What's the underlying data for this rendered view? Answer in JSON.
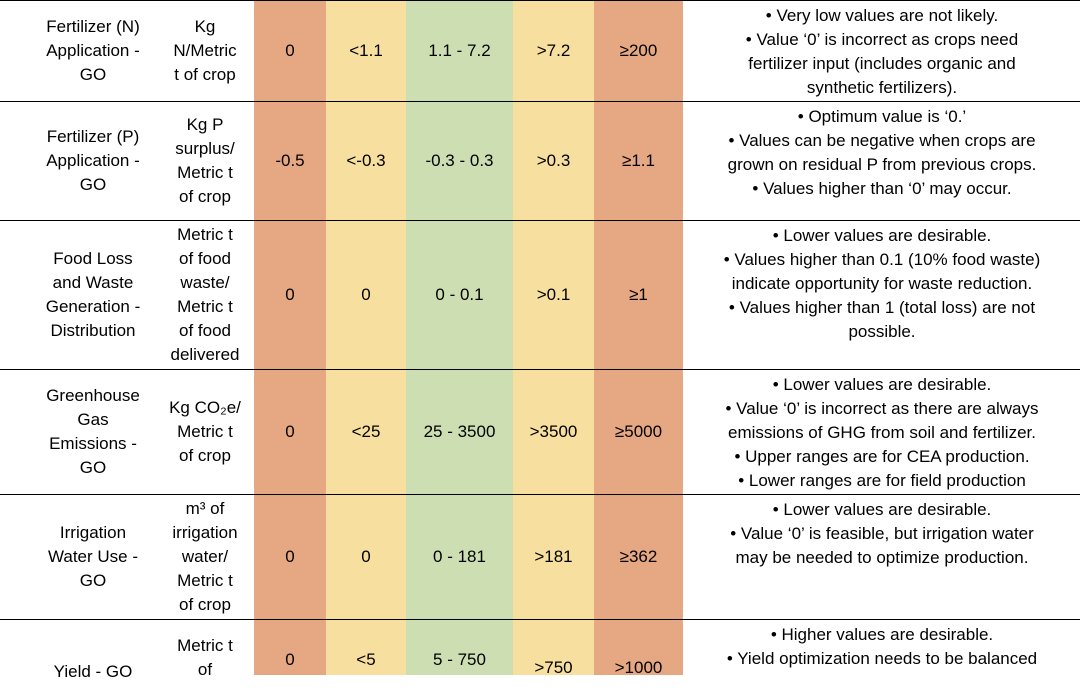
{
  "colors": {
    "red_band": "#E6A883",
    "yellow_band": "#F7E09F",
    "green_band": "#CDDEB2"
  },
  "rows": [
    {
      "metric": "Fertilizer (N)\nApplication -\nGO",
      "unit": "Kg\nN/Metric\nt of crop",
      "v1": "0",
      "v2": "<1.1",
      "v3": "1.1 - 7.2",
      "v4": ">7.2",
      "v5": "≥200",
      "notes": [
        "• Very low values are not likely.",
        "• Value ‘0’ is incorrect as crops need\nfertilizer input (includes organic and\nsynthetic fertilizers)."
      ]
    },
    {
      "metric": "Fertilizer (P)\nApplication -\nGO",
      "unit": "Kg P\nsurplus/\nMetric t\nof crop",
      "v1": "-0.5",
      "v2": "<-0.3",
      "v3": "-0.3 - 0.3",
      "v4": ">0.3",
      "v5": "≥1.1",
      "notes": [
        "• Optimum value is ‘0.’",
        "• Values can be negative when crops are\ngrown on residual P from previous crops.",
        "• Values higher than ‘0’ may occur."
      ]
    },
    {
      "metric": "Food Loss\nand Waste\nGeneration -\nDistribution",
      "unit": "Metric t\nof food\nwaste/\nMetric t\nof food\ndelivered",
      "v1": "0",
      "v2": "0",
      "v3": "0 - 0.1",
      "v4": ">0.1",
      "v5": "≥1",
      "notes": [
        "• Lower values are desirable.",
        "• Values higher than 0.1 (10% food waste)\nindicate opportunity for waste reduction.",
        "• Values higher than 1 (total loss) are not\npossible."
      ]
    },
    {
      "metric": "Greenhouse\nGas\nEmissions -\nGO",
      "unit": "Kg CO₂e/\nMetric t\nof crop",
      "v1": "0",
      "v2": "<25",
      "v3": "25 - 3500",
      "v4": ">3500",
      "v5": "≥5000",
      "notes": [
        "• Lower values are desirable.",
        "• Value ‘0’ is incorrect as there are always\nemissions of GHG from soil and fertilizer.",
        "• Upper ranges are for CEA production.",
        "• Lower ranges are for field production"
      ]
    },
    {
      "metric": "Irrigation\nWater Use -\nGO",
      "unit": "m³ of\nirrigation\nwater/\nMetric t\nof crop",
      "v1": "0",
      "v2": "0",
      "v3": "0 - 181",
      "v4": ">181",
      "v5": "≥362",
      "notes": [
        "• Lower values are desirable.",
        "• Value ‘0’ is feasible, but irrigation water\nmay be needed to optimize production."
      ]
    },
    {
      "metric": "Yield - GO",
      "unit": "Metric t\nof",
      "v1": "0",
      "v2": "<5",
      "v3": "5 - 750",
      "v4": ">750",
      "v5": ">1000",
      "notes": [
        "• Higher values are desirable.",
        "• Yield optimization needs to be balanced"
      ]
    }
  ]
}
